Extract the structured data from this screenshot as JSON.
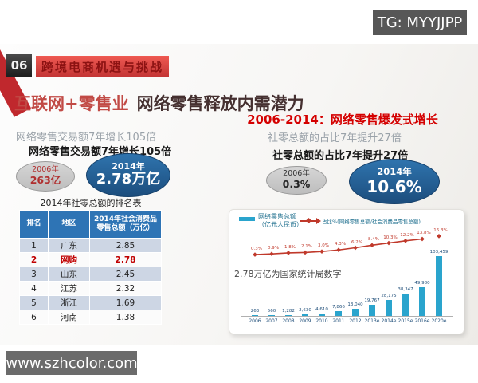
{
  "watermark_top": "TG: MYYJJPP",
  "watermark_bottom": "www.szhcolor.com",
  "header": {
    "page_number": "06",
    "banner": "跨境电商机遇与挑战"
  },
  "title": {
    "part1": "互联网+零售业",
    "part2": "网络零售释放内需潜力"
  },
  "subtitle": "2006-2014：网络零售爆发式增长",
  "left_panel": {
    "caption_shadow": "网络零售交易额7年增长105倍",
    "caption": "网络零售交易额7年增长105倍",
    "oval_2006": {
      "year": "2006年",
      "value": "263亿"
    },
    "oval_2014": {
      "year": "2014年",
      "value": "2.78万亿"
    }
  },
  "right_panel": {
    "caption_shadow": "社零总额的占比7年提升27倍",
    "caption": "社零总额的占比7年提升27倍",
    "oval_2006": {
      "year": "2006年",
      "value": "0.3%"
    },
    "oval_2014": {
      "year": "2014年",
      "value": "10.6%"
    }
  },
  "chart_data": [
    {
      "type": "bar+line",
      "title": "",
      "categories": [
        "2006",
        "2007",
        "2008",
        "2009",
        "2010",
        "2011",
        "2012",
        "2013e",
        "2014e",
        "2015e",
        "2016e",
        "2020e"
      ],
      "series": [
        {
          "name": "网络零售总额",
          "name_line2": "（亿元人民币）",
          "type": "bar",
          "color": "#2AA4CD",
          "values": [
            263,
            560,
            1282,
            2630,
            4610,
            7866,
            13040,
            19767,
            28175,
            38347,
            49980,
            103459
          ],
          "labels": [
            "263",
            "560",
            "1,282",
            "2,630",
            "4,610",
            "7,866",
            "13,040",
            "19,767",
            "28,175",
            "38,347",
            "49,980",
            "103,459"
          ]
        },
        {
          "name": "占比%(网络零售总额/社会消费品零售总额)",
          "type": "line",
          "color": "#C0392B",
          "values": [
            0.3,
            0.9,
            1.8,
            2.1,
            3.0,
            4.3,
            6.2,
            8.4,
            10.3,
            12.2,
            13.8,
            16.3
          ],
          "labels": [
            "0.3%",
            "0.9%",
            "1.8%",
            "2.1%",
            "3.0%",
            "4.3%",
            "6.2%",
            "8.4%",
            "10.3%",
            "12.2%",
            "13.8%",
            "16.3%"
          ]
        }
      ],
      "note": "2.78万亿为国家统计局数字",
      "legend_position": "top",
      "grid": false,
      "gap_before_last_category": true
    },
    {
      "type": "table",
      "title": "2014年社零总额的排名表",
      "headers": [
        "排名",
        "地区",
        "2014年社会消费品零售总额（万亿）"
      ],
      "rows": [
        {
          "rank": "1",
          "region": "广东",
          "value": "2.85",
          "highlight": false
        },
        {
          "rank": "2",
          "region": "网购",
          "value": "2.78",
          "highlight": true
        },
        {
          "rank": "3",
          "region": "山东",
          "value": "2.45",
          "highlight": false
        },
        {
          "rank": "4",
          "region": "江苏",
          "value": "2.32",
          "highlight": false
        },
        {
          "rank": "5",
          "region": "浙江",
          "value": "1.69",
          "highlight": false
        },
        {
          "rank": "6",
          "region": "河南",
          "value": "1.38",
          "highlight": false
        }
      ]
    }
  ],
  "colors": {
    "bar_blue": "#2AA4CD",
    "line_red": "#C0392B",
    "table_header_blue": "#2E74B5",
    "oval_blue": "#1F5A96",
    "banner_red": "#C23434",
    "subtitle_red": "#D40000"
  }
}
